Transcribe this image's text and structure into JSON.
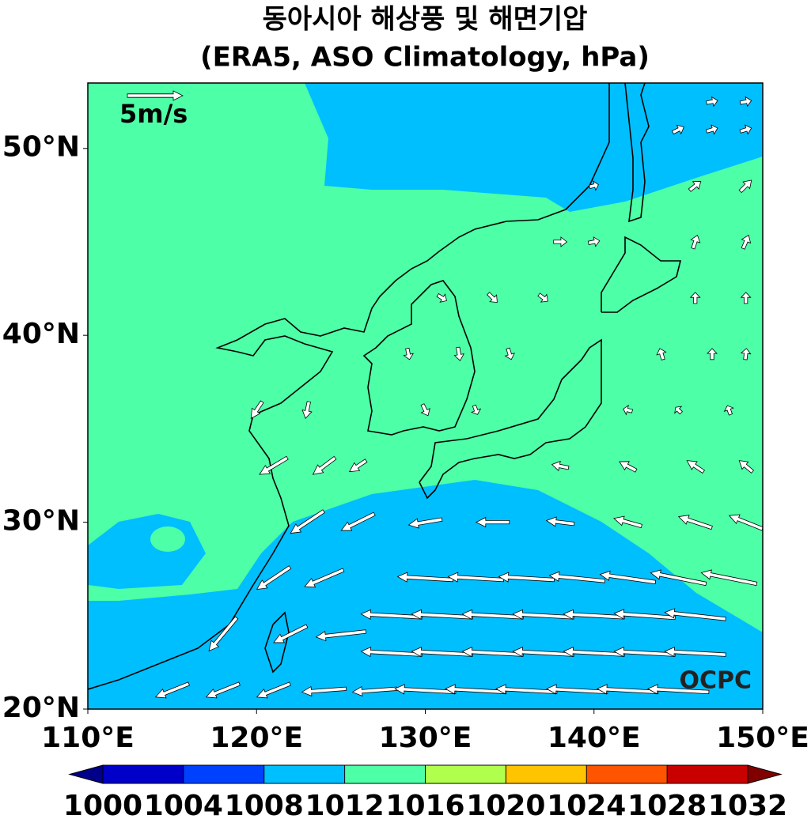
{
  "chart_data": {
    "type": "map",
    "title": "동아시아 해상풍 및 해면기압",
    "subtitle": "(ERA5, ASO Climatology, hPa)",
    "xlim": [
      110,
      150
    ],
    "ylim": [
      20,
      53.5
    ],
    "xticks": [
      {
        "value": 110,
        "label": "110°E"
      },
      {
        "value": 120,
        "label": "120°E"
      },
      {
        "value": 130,
        "label": "130°E"
      },
      {
        "value": 140,
        "label": "140°E"
      },
      {
        "value": 150,
        "label": "150°E"
      }
    ],
    "yticks": [
      {
        "value": 20,
        "label": "20°N"
      },
      {
        "value": 30,
        "label": "30°N"
      },
      {
        "value": 40,
        "label": "40°N"
      },
      {
        "value": 50,
        "label": "50°N"
      }
    ],
    "reference_vector": {
      "value": 5,
      "label": "5m/s"
    },
    "watermark": "OCPC",
    "colorbar": {
      "levels": [
        1000,
        1004,
        1008,
        1012,
        1016,
        1020,
        1024,
        1028,
        1032
      ],
      "colors": [
        "#0000c8",
        "#0040ff",
        "#00bfff",
        "#4dffa6",
        "#b0ff4d",
        "#ffc400",
        "#ff5500",
        "#c80000"
      ],
      "under_color": "#00008b",
      "over_color": "#800000"
    },
    "vectors": [
      [
        115,
        21,
        -3,
        -1.2
      ],
      [
        118,
        21,
        -3,
        -1.2
      ],
      [
        121,
        21,
        -3,
        -1.2
      ],
      [
        124,
        21,
        -4,
        -0.3
      ],
      [
        127,
        21,
        -4,
        -0.3
      ],
      [
        130,
        21,
        -5.5,
        0.3
      ],
      [
        133,
        21,
        -5.5,
        0.3
      ],
      [
        136,
        21,
        -5.5,
        0.3
      ],
      [
        139,
        21,
        -5.5,
        0.3
      ],
      [
        142,
        21,
        -5.5,
        0.3
      ],
      [
        145,
        21,
        -5.5,
        0.3
      ],
      [
        118,
        24,
        -2.5,
        -3
      ],
      [
        122,
        24,
        -3,
        -1.5
      ],
      [
        125,
        24,
        -4.5,
        -0.5
      ],
      [
        128,
        23,
        -5.5,
        0.3
      ],
      [
        131,
        23,
        -5.5,
        0.3
      ],
      [
        134,
        23,
        -5.5,
        0.3
      ],
      [
        137,
        23,
        -5.5,
        0.3
      ],
      [
        140,
        23,
        -5.5,
        0.3
      ],
      [
        143,
        23,
        -5.5,
        0.3
      ],
      [
        146,
        23,
        -5.5,
        0.3
      ],
      [
        128,
        25,
        -5.5,
        0.3
      ],
      [
        131,
        25,
        -5.5,
        0.3
      ],
      [
        134,
        25,
        -5.5,
        0.3
      ],
      [
        137,
        25,
        -5.5,
        0.3
      ],
      [
        140,
        25,
        -5.5,
        0.3
      ],
      [
        143,
        25,
        -5.5,
        0.4
      ],
      [
        146,
        25,
        -5.5,
        0.6
      ],
      [
        121,
        27,
        -3,
        -2
      ],
      [
        124,
        27,
        -3.5,
        -1.5
      ],
      [
        130,
        27,
        -5,
        0.3
      ],
      [
        133,
        27,
        -5,
        0.3
      ],
      [
        136,
        27,
        -5,
        0.3
      ],
      [
        139,
        27,
        -5,
        0.5
      ],
      [
        142,
        27,
        -5,
        0.7
      ],
      [
        145,
        27,
        -5,
        1
      ],
      [
        148,
        27,
        -5,
        1
      ],
      [
        123,
        30,
        -3,
        -2
      ],
      [
        126,
        30,
        -3,
        -1.5
      ],
      [
        130,
        30,
        -3,
        -0.5
      ],
      [
        134,
        30,
        -3,
        0
      ],
      [
        138,
        30,
        -2.5,
        0.3
      ],
      [
        142,
        30,
        -2.5,
        0.7
      ],
      [
        146,
        30,
        -3,
        1
      ],
      [
        149,
        30,
        -3,
        1.2
      ],
      [
        121,
        33,
        -2.5,
        -1.5
      ],
      [
        124,
        33,
        -2,
        -1.5
      ],
      [
        126,
        33,
        -1.5,
        -1
      ],
      [
        138,
        33,
        -1.5,
        0.3
      ],
      [
        142,
        33,
        -1.5,
        0.8
      ],
      [
        146,
        33,
        -1.5,
        1
      ],
      [
        149,
        33,
        -1.2,
        1
      ],
      [
        120,
        36,
        -1,
        -1.5
      ],
      [
        123,
        36,
        -0.3,
        -1.5
      ],
      [
        130,
        36,
        0.5,
        -1
      ],
      [
        133,
        36,
        0.3,
        -0.8
      ],
      [
        142,
        36,
        -0.8,
        0.2
      ],
      [
        145,
        36,
        -0.5,
        0.5
      ],
      [
        148,
        36,
        -0.3,
        0.8
      ],
      [
        129,
        39,
        0.2,
        -1
      ],
      [
        132,
        39,
        0.2,
        -1.2
      ],
      [
        135,
        39,
        0.3,
        -1
      ],
      [
        144,
        39,
        -0.3,
        1
      ],
      [
        147,
        39,
        0,
        1
      ],
      [
        149,
        39,
        0.1,
        1
      ],
      [
        131,
        42,
        0.8,
        -0.5
      ],
      [
        134,
        42,
        0.8,
        -0.8
      ],
      [
        137,
        42,
        0.8,
        -0.6
      ],
      [
        146,
        42,
        0,
        1
      ],
      [
        149,
        42,
        0,
        1
      ],
      [
        138,
        45,
        1.2,
        0
      ],
      [
        140,
        45,
        1,
        0.2
      ],
      [
        146,
        45,
        0.4,
        1.2
      ],
      [
        149,
        45,
        0.5,
        1.2
      ],
      [
        140,
        48,
        0.8,
        0.2
      ],
      [
        146,
        48,
        1,
        0.8
      ],
      [
        149,
        48,
        1,
        1
      ],
      [
        145,
        51,
        1,
        0.5
      ],
      [
        147,
        51,
        1,
        0.3
      ],
      [
        149,
        51,
        1,
        0.3
      ],
      [
        147,
        52.5,
        1,
        0.2
      ],
      [
        149,
        52.5,
        1,
        0.2
      ]
    ]
  }
}
